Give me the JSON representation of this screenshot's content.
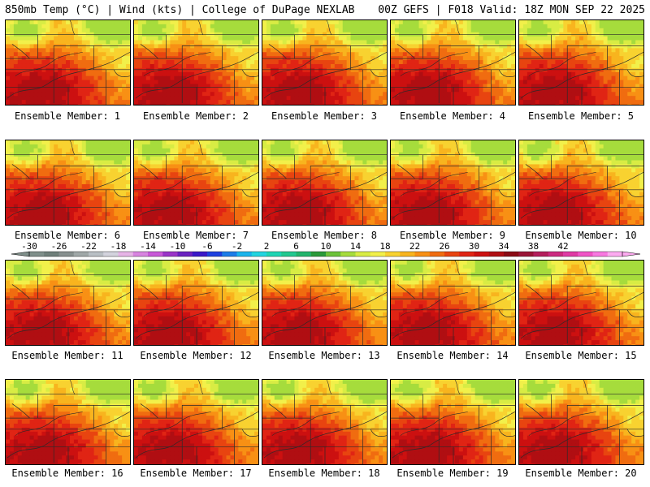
{
  "header": {
    "left": "850mb Temp (°C) | Wind (kts) | College of DuPage NEXLAB",
    "right": "00Z GEFS | F018 Valid: 18Z MON SEP 22 2025"
  },
  "panels": [
    {
      "label": "Ensemble Member: 1"
    },
    {
      "label": "Ensemble Member: 2"
    },
    {
      "label": "Ensemble Member: 3"
    },
    {
      "label": "Ensemble Member: 4"
    },
    {
      "label": "Ensemble Member: 5"
    },
    {
      "label": "Ensemble Member: 6"
    },
    {
      "label": "Ensemble Member: 7"
    },
    {
      "label": "Ensemble Member: 8"
    },
    {
      "label": "Ensemble Member: 9"
    },
    {
      "label": "Ensemble Member: 10"
    },
    {
      "label": "Ensemble Member: 11"
    },
    {
      "label": "Ensemble Member: 12"
    },
    {
      "label": "Ensemble Member: 13"
    },
    {
      "label": "Ensemble Member: 14"
    },
    {
      "label": "Ensemble Member: 15"
    },
    {
      "label": "Ensemble Member: 16"
    },
    {
      "label": "Ensemble Member: 17"
    },
    {
      "label": "Ensemble Member: 18"
    },
    {
      "label": "Ensemble Member: 19"
    },
    {
      "label": "Ensemble Member: 20"
    }
  ],
  "legend": {
    "labels": [
      "-30",
      "-26",
      "-22",
      "-18",
      "-14",
      "-10",
      "-6",
      "-2",
      "2",
      "6",
      "10",
      "14",
      "18",
      "22",
      "26",
      "30",
      "34",
      "38",
      "42"
    ],
    "colors": [
      "#7f8f8a",
      "#6f7f7a",
      "#87908f",
      "#a0a8a8",
      "#b9bfc4",
      "#d3d3dd",
      "#e6b4e6",
      "#d884e0",
      "#c858d8",
      "#9a34c8",
      "#6a22c0",
      "#3a18c8",
      "#1e40e0",
      "#1c7ce8",
      "#1ab4ec",
      "#22d4e0",
      "#1ed4b4",
      "#22c890",
      "#22b46c",
      "#2a9a3a",
      "#6cc23a",
      "#a6dc3c",
      "#d8ec44",
      "#f2f04a",
      "#f8d230",
      "#f8b41e",
      "#f89014",
      "#f06c10",
      "#e84410",
      "#e02414",
      "#cc1010",
      "#b00e12",
      "#8a0a14",
      "#9a1436",
      "#b41e5c",
      "#cc2a80",
      "#e03aa4",
      "#f054c6",
      "#f878e0",
      "#fcaaf0"
    ]
  }
}
